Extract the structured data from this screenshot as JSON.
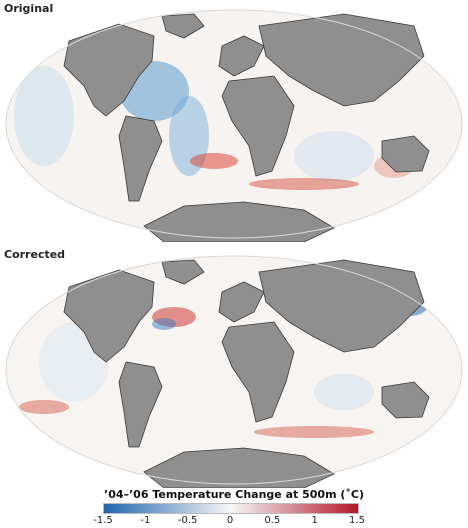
{
  "panels": [
    {
      "label": "Original"
    },
    {
      "label": "Corrected"
    }
  ],
  "legend": {
    "title": "’04–’06 Temperature Change at 500m (˚C)",
    "ticks": [
      "-1.5",
      "-1",
      "-0.5",
      "0",
      "0.5",
      "1",
      "1.5"
    ],
    "range": [
      -1.5,
      1.5
    ],
    "colors": {
      "cold": "#2166ac",
      "neutral": "#f7f7f7",
      "warm": "#b2182b"
    }
  },
  "colors": {
    "land": "#8f8f8f",
    "coast": "#3a3a3a"
  }
}
